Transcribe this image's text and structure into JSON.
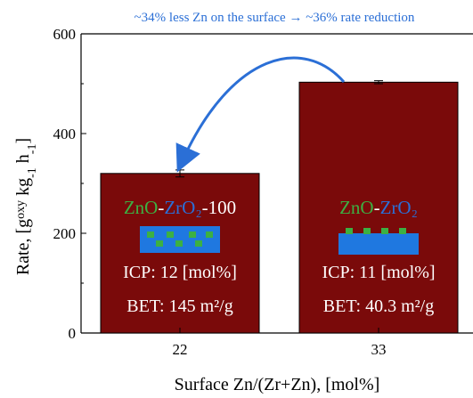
{
  "chart_data": {
    "type": "bar",
    "annotation": "~34% less Zn on the surface →  ~36% rate reduction",
    "annotation_color": "#2b6fd6",
    "categories": [
      "22",
      "33"
    ],
    "values": [
      320,
      503
    ],
    "errors": [
      7,
      3
    ],
    "color": "#7a0a0a",
    "ylim": [
      0,
      600
    ],
    "yticks": [
      0,
      200,
      400,
      600
    ],
    "yticks_minor": [
      100,
      300,
      500
    ],
    "x_label": "Surface Zn/(Zr+Zn), [mol%]",
    "y_label": [
      "Rate, [g",
      "oxy",
      " kg",
      "-1",
      " h",
      "-1",
      "]"
    ],
    "bar_labels": [
      {
        "formula": [
          {
            "text": "ZnO",
            "color": "#3cb043"
          },
          {
            "text": "-",
            "color": "#ffffff"
          },
          {
            "text": "ZrO₂",
            "color": "#2b6fd6"
          },
          {
            "text": "-100",
            "color": "#ffffff"
          }
        ],
        "icp": "ICP: 12 [mol%]",
        "bet": "BET: 145 m²/g"
      },
      {
        "formula": [
          {
            "text": "ZnO",
            "color": "#3cb043"
          },
          {
            "text": "-",
            "color": "#ffffff"
          },
          {
            "text": "ZrO₂",
            "color": "#2b6fd6"
          }
        ],
        "icp": "ICP: 11 [mol%]",
        "bet": "BET: 40.3 m²/g"
      }
    ]
  }
}
